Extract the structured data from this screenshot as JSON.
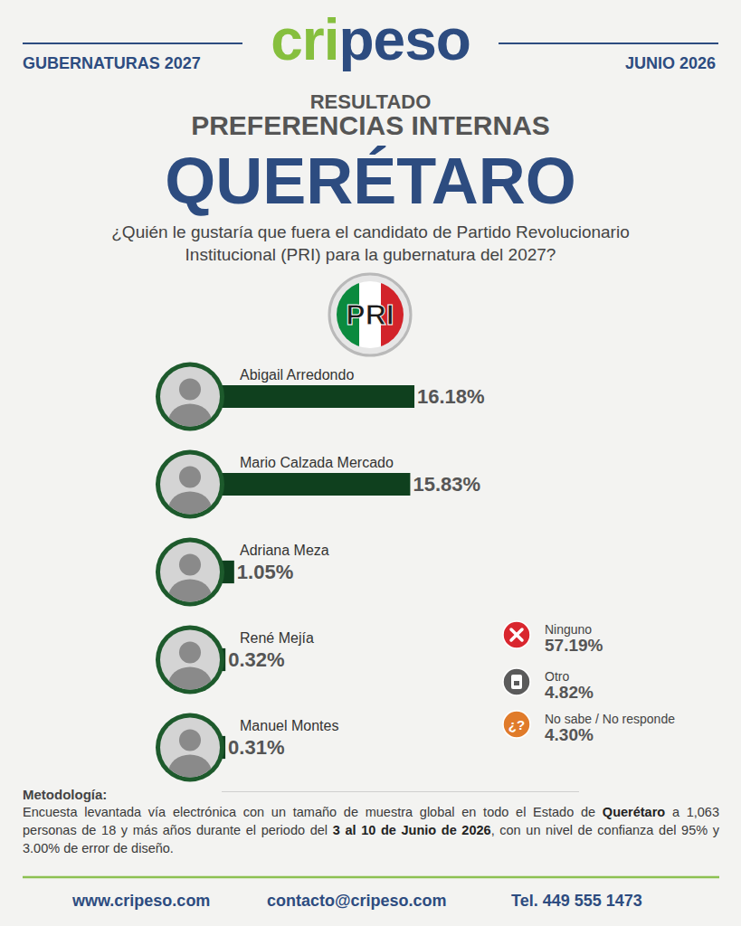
{
  "chart_data": {
    "type": "bar",
    "orientation": "horizontal",
    "categories": [
      "Abigail Arredondo",
      "Mario Calzada Mercado",
      "Adriana Meza",
      "René Mejía",
      "Manuel Montes"
    ],
    "values": [
      16.18,
      15.83,
      1.05,
      0.32,
      0.31
    ],
    "value_labels": [
      "16.18%",
      "15.83%",
      "1.05%",
      "0.32%",
      "0.31%"
    ],
    "color": "#0f401e",
    "data_labels": true,
    "tick_labels": false,
    "grid": false,
    "xlim": [
      0,
      30
    ]
  },
  "header": {
    "brand": "cripeso",
    "left": "GUBERNATURAS 2027",
    "right": "JUNIO 2026",
    "kicker": "RESULTADO",
    "subtitle": "PREFERENCIAS INTERNAS",
    "title": "QUERÉTARO",
    "question": "¿Quién le gustaría que fuera el candidato de Partido Revolucionario Institucional (PRI) para la gubernatura del 2027?",
    "logo": "PRI"
  },
  "other_answers": [
    {
      "label": "Ninguno",
      "value": "57.19%",
      "color": "#d9262e"
    },
    {
      "label": "Otro",
      "value": "4.82%",
      "color": "#5b5b5b"
    },
    {
      "label": "No sabe / No responde",
      "value": "4.30%",
      "color": "#e07b2a",
      "icon": "¿?"
    }
  ],
  "methodology": {
    "title": "Metodología:",
    "text": [
      {
        "text": "Encuesta levantada vía electrónica con un tamaño de muestra global en todo el Estado de ",
        "bold": false
      },
      {
        "text": "Querétaro",
        "bold": true
      },
      {
        "text": " a 1,063 personas de 18 y más años durante el periodo del ",
        "bold": false
      },
      {
        "text": "3 al 10 de Junio de 2026",
        "bold": true
      },
      {
        "text": ", con un nivel de confianza del 95% y 3.00% de error de diseño.",
        "bold": false
      }
    ]
  },
  "footer": [
    "www.cripeso.com",
    "contacto@cripeso.com",
    "Tel. 449 555 1473"
  ]
}
